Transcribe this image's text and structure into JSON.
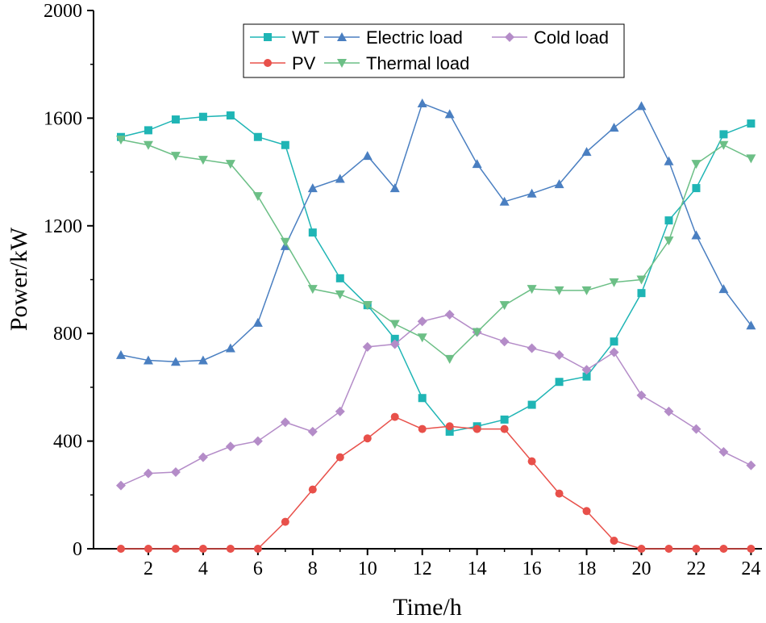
{
  "chart_data": {
    "type": "line",
    "xlabel": "Time/h",
    "ylabel": "Power/kW",
    "xlim": [
      0,
      24.4
    ],
    "ylim": [
      0,
      2000
    ],
    "x_ticks": [
      2,
      4,
      6,
      8,
      10,
      12,
      14,
      16,
      18,
      20,
      22,
      24
    ],
    "y_ticks": [
      0,
      400,
      800,
      1200,
      1600,
      2000
    ],
    "x": [
      1,
      2,
      3,
      4,
      5,
      6,
      7,
      8,
      9,
      10,
      11,
      12,
      13,
      14,
      15,
      16,
      17,
      18,
      19,
      20,
      21,
      22,
      23,
      24
    ],
    "legend_position": "top",
    "grid": false,
    "series": [
      {
        "name": "WT",
        "color": "#1fb5b5",
        "marker": "square",
        "values": [
          1530,
          1555,
          1595,
          1605,
          1610,
          1530,
          1500,
          1175,
          1005,
          905,
          780,
          560,
          435,
          455,
          480,
          535,
          620,
          640,
          770,
          950,
          1220,
          1340,
          1540,
          1580
        ]
      },
      {
        "name": "Electric load",
        "color": "#4a7fc1",
        "marker": "triangle-up",
        "values": [
          720,
          700,
          695,
          700,
          745,
          840,
          1125,
          1340,
          1375,
          1460,
          1340,
          1655,
          1615,
          1430,
          1290,
          1320,
          1355,
          1475,
          1565,
          1645,
          1440,
          1165,
          965,
          830
        ]
      },
      {
        "name": "Cold load",
        "color": "#b48cc8",
        "marker": "diamond",
        "values": [
          235,
          280,
          285,
          340,
          380,
          400,
          470,
          435,
          510,
          750,
          760,
          845,
          870,
          805,
          770,
          745,
          720,
          665,
          730,
          570,
          510,
          445,
          360,
          310
        ]
      },
      {
        "name": "PV",
        "color": "#e8504a",
        "marker": "circle",
        "values": [
          0,
          0,
          0,
          0,
          0,
          0,
          100,
          220,
          340,
          410,
          490,
          445,
          455,
          445,
          445,
          325,
          205,
          140,
          30,
          0,
          0,
          0,
          0,
          0
        ]
      },
      {
        "name": "Thermal load",
        "color": "#6cbf86",
        "marker": "triangle-down",
        "values": [
          1520,
          1500,
          1460,
          1445,
          1430,
          1310,
          1140,
          965,
          945,
          905,
          835,
          785,
          705,
          805,
          905,
          965,
          960,
          960,
          990,
          1000,
          1145,
          1430,
          1500,
          1450
        ]
      }
    ]
  }
}
